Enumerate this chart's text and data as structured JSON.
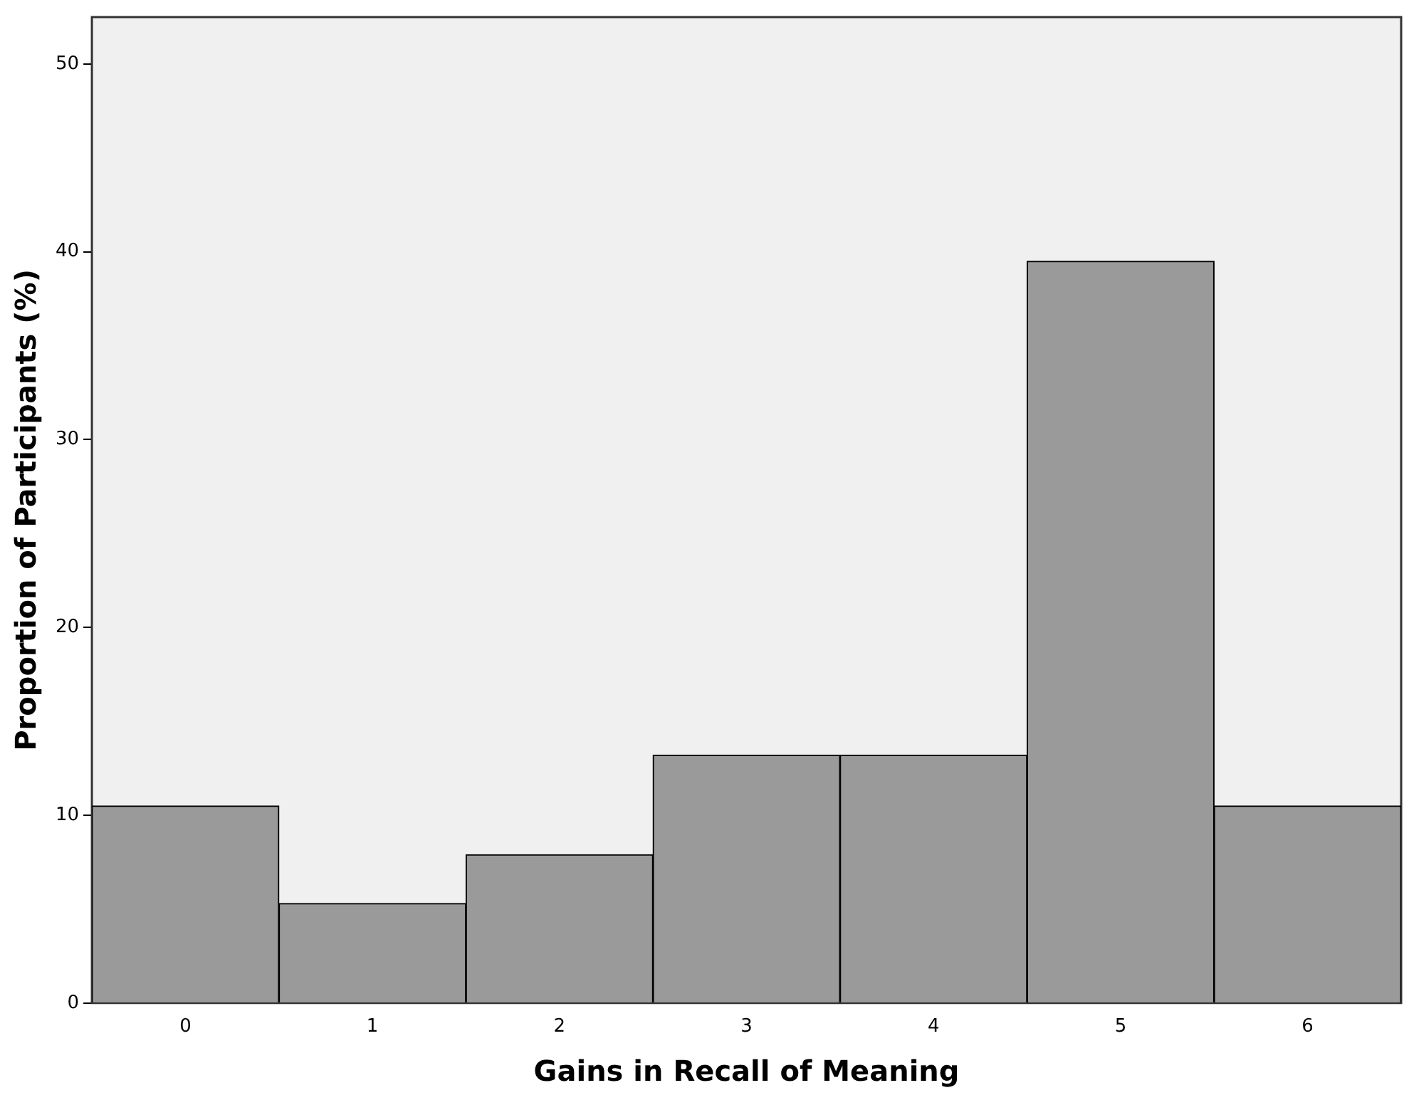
{
  "chart_data": {
    "type": "bar",
    "xlabel": "Gains in Recall of Meaning",
    "ylabel": "Proportion of Participants (%)",
    "categories": [
      "0",
      "1",
      "2",
      "3",
      "4",
      "5",
      "6"
    ],
    "values": [
      10.5,
      5.3,
      7.9,
      13.2,
      13.2,
      39.5,
      10.5
    ],
    "color": "#9a9a9a",
    "ylim": [
      0,
      52.5
    ],
    "yticks": [
      0,
      10,
      20,
      30,
      40,
      50
    ],
    "grid": false
  }
}
